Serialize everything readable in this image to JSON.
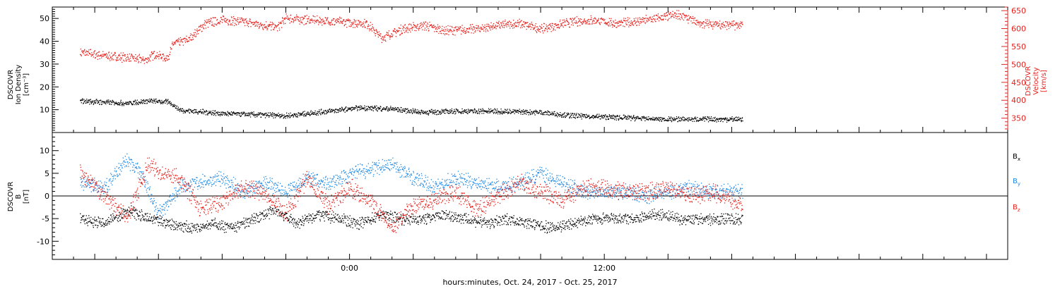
{
  "chart_data": [
    {
      "type": "scatter",
      "panel": "top",
      "ylabel_left": [
        "DSCOVR",
        "Ion Density",
        "[cm^-3]"
      ],
      "ylabel_right": [
        "DSCOVR",
        "Velocity",
        "[km/s]"
      ],
      "ylim_left": [
        0,
        55
      ],
      "ylim_right": [
        310,
        660
      ],
      "yticks_left": [
        10,
        20,
        30,
        40,
        50
      ],
      "yticks_right": [
        350,
        400,
        450,
        500,
        550,
        600,
        650
      ],
      "right_axis_color": "#e8201c",
      "series": [
        {
          "name": "Velocity",
          "axis": "right",
          "color": "#e8201c",
          "x": [
            -12.7,
            -11.5,
            -10.5,
            -9.6,
            -9.2,
            -8.6,
            -8.3,
            -7.6,
            -6.8,
            -6.0,
            -5.0,
            -4.0,
            -3.4,
            -3.0,
            -2.0,
            -0.5,
            0.8,
            1.5,
            2.5,
            3.5,
            4.5,
            6.0,
            7.0,
            8.0,
            9.0,
            10.5,
            11.5,
            12.5,
            13.5,
            14.5,
            15.5,
            16.5,
            18.5
          ],
          "y": [
            535,
            525,
            520,
            513,
            530,
            518,
            560,
            570,
            615,
            625,
            620,
            610,
            605,
            630,
            625,
            620,
            615,
            575,
            600,
            610,
            595,
            600,
            610,
            615,
            600,
            620,
            625,
            615,
            620,
            630,
            640,
            615,
            610
          ]
        },
        {
          "name": "Ion Density",
          "axis": "left",
          "color": "#000000",
          "x": [
            -12.7,
            -10.5,
            -9.5,
            -8.5,
            -8.0,
            -6.0,
            -4.5,
            -3.0,
            -1.5,
            0.5,
            2.0,
            3.5,
            5.0,
            7.0,
            9.0,
            10.5,
            12.0,
            13.5,
            14.5,
            16.5,
            18.5
          ],
          "y": [
            14,
            13,
            14,
            13.5,
            10,
            8.5,
            8,
            7.5,
            9,
            11,
            10.5,
            9,
            9.5,
            9.5,
            9,
            7.5,
            7,
            6.5,
            6,
            6,
            6
          ]
        }
      ]
    },
    {
      "type": "scatter",
      "panel": "bottom",
      "ylabel": [
        "DSCOVR",
        "B",
        "[nT]"
      ],
      "ylim": [
        -14,
        14
      ],
      "yticks": [
        -10,
        -5,
        0,
        5,
        10
      ],
      "zero_line": true,
      "legend_labels": [
        "Bx",
        "By",
        "Bz"
      ],
      "xlabel": "hours:minutes, Oct. 24, 2017 - Oct. 25, 2017",
      "xlim": [
        -14,
        31
      ],
      "x_ticklabels": [
        {
          "x": 0,
          "label": "0:00"
        },
        {
          "x": 12,
          "label": "12:00"
        }
      ],
      "series": [
        {
          "name": "Bx",
          "color": "#000000",
          "x": [
            -12.7,
            -11.5,
            -10.5,
            -9.5,
            -8.5,
            -7.5,
            -6.5,
            -5.5,
            -4.5,
            -3.5,
            -2.5,
            -1.5,
            -0.5,
            0.5,
            1.5,
            2.5,
            3.5,
            4.5,
            5.5,
            6.5,
            7.5,
            8.5,
            9.5,
            10.5,
            11.5,
            12.5,
            13.5,
            14.5,
            15.5,
            16.5,
            17.5,
            18.5
          ],
          "y": [
            -5,
            -6,
            -3,
            -5,
            -6,
            -7,
            -6,
            -7,
            -5,
            -3,
            -6,
            -4,
            -5,
            -6,
            -4,
            -5,
            -5,
            -4,
            -5,
            -6,
            -5,
            -6,
            -7,
            -6,
            -5,
            -5,
            -5,
            -4,
            -5,
            -5,
            -5,
            -5
          ]
        },
        {
          "name": "By",
          "color": "#1e88e5",
          "x": [
            -12.7,
            -11.5,
            -10.5,
            -9.8,
            -9.0,
            -8.0,
            -7.0,
            -6.0,
            -5.0,
            -4.0,
            -3.0,
            -2.0,
            -1.0,
            0.0,
            1.0,
            2.0,
            3.0,
            4.0,
            5.0,
            6.0,
            7.0,
            8.0,
            9.0,
            10.0,
            11.0,
            12.0,
            13.0,
            14.0,
            15.0,
            16.0,
            17.0,
            18.5
          ],
          "y": [
            3,
            2,
            8,
            5,
            -4,
            2,
            3,
            4,
            1,
            3,
            1,
            4,
            3,
            5,
            6,
            7,
            4,
            2,
            4,
            3,
            2,
            3,
            5,
            3,
            1,
            1,
            1,
            0,
            1,
            2,
            1,
            1
          ]
        },
        {
          "name": "Bz",
          "color": "#e8201c",
          "x": [
            -12.7,
            -11.5,
            -10.5,
            -9.5,
            -8.8,
            -8.0,
            -7.0,
            -6.0,
            -5.0,
            -4.0,
            -3.0,
            -2.0,
            -1.0,
            0.0,
            1.0,
            2.0,
            3.0,
            4.0,
            5.0,
            6.0,
            7.0,
            8.0,
            9.0,
            10.0,
            11.0,
            12.0,
            13.0,
            14.0,
            15.0,
            16.0,
            17.0,
            18.5
          ],
          "y": [
            5,
            0,
            -5,
            7,
            5,
            4,
            -3,
            -1,
            2,
            1,
            -4,
            4,
            -2,
            2,
            -1,
            -7,
            -2,
            -1,
            1,
            -3,
            0,
            3,
            1,
            -1,
            2,
            2,
            1,
            1,
            2,
            0,
            1,
            -2
          ]
        }
      ]
    }
  ]
}
